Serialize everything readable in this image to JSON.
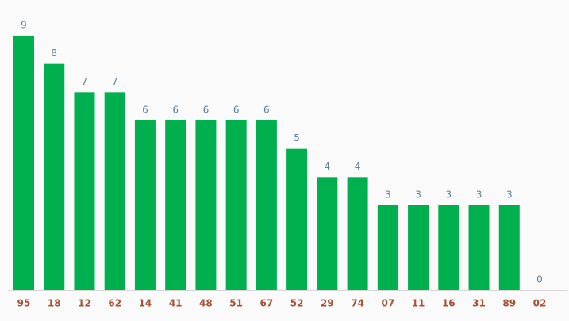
{
  "chart_data": {
    "type": "bar",
    "categories": [
      "95",
      "18",
      "12",
      "62",
      "14",
      "41",
      "48",
      "51",
      "67",
      "52",
      "29",
      "74",
      "07",
      "11",
      "16",
      "31",
      "89",
      "02"
    ],
    "values": [
      9,
      8,
      7,
      7,
      6,
      6,
      6,
      6,
      6,
      5,
      4,
      4,
      3,
      3,
      3,
      3,
      3,
      0
    ],
    "color": "#00b04f"
  }
}
